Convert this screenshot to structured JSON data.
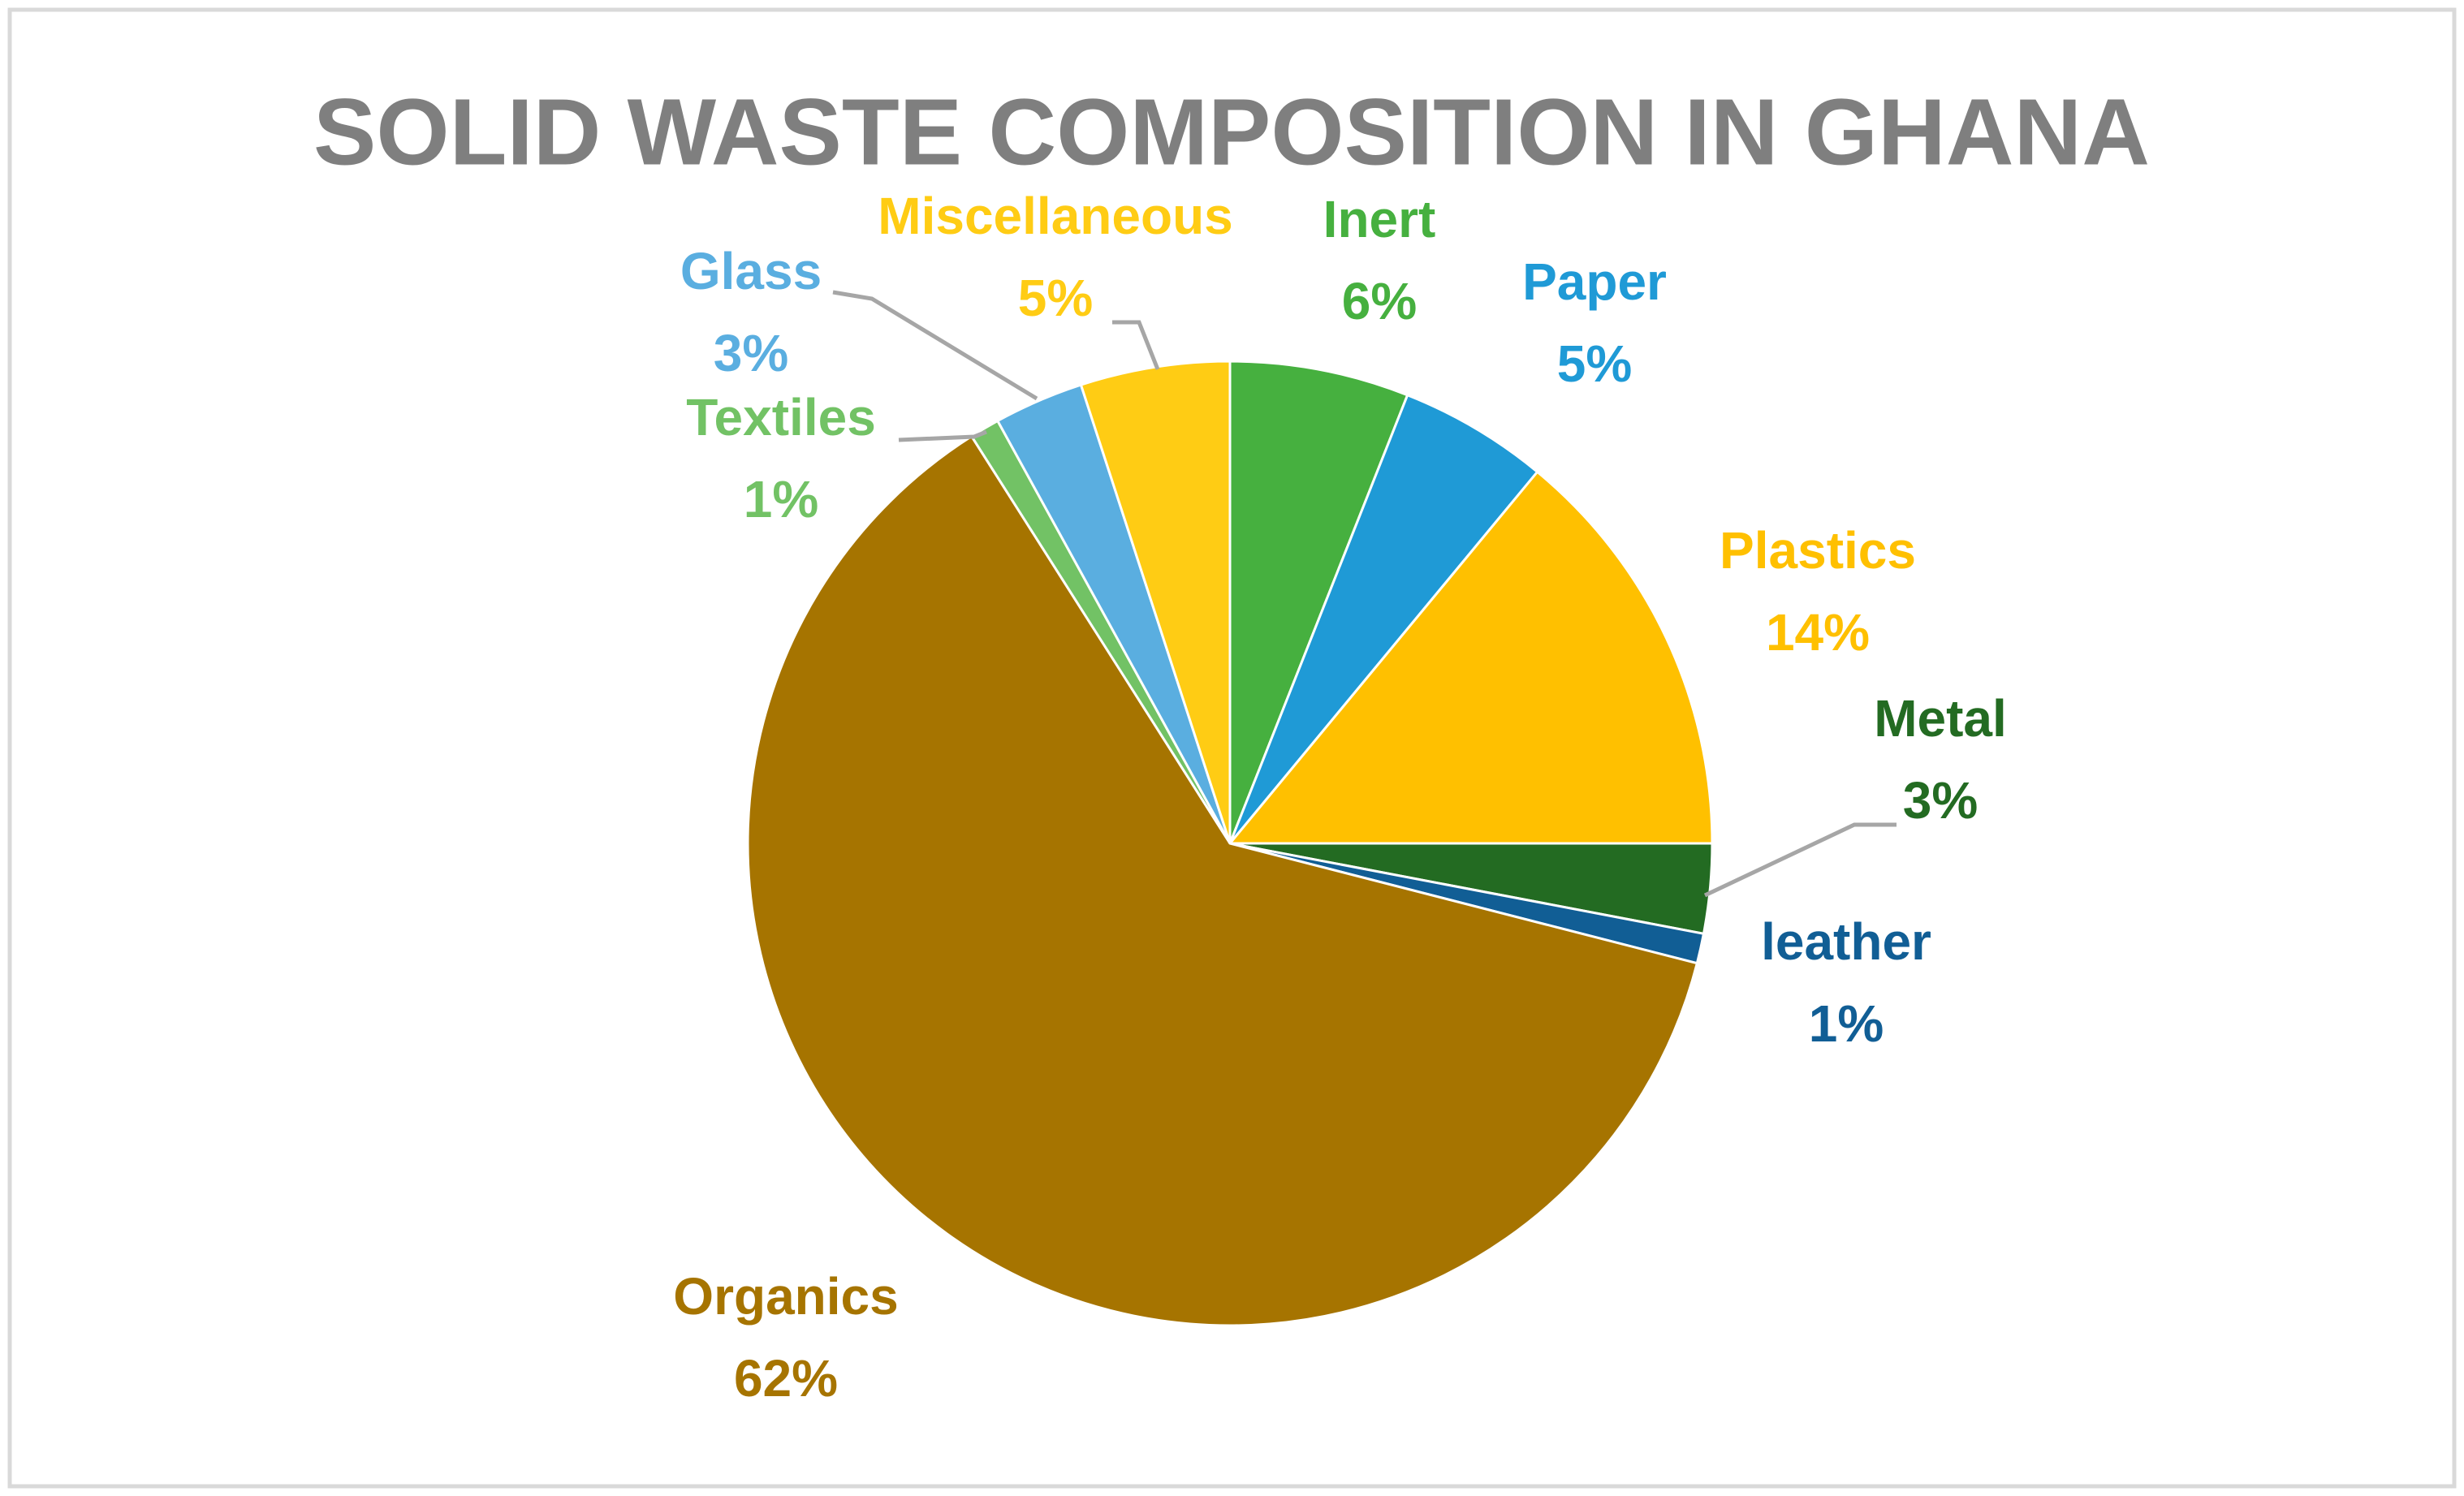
{
  "chart_data": {
    "type": "pie",
    "title": "SOLID WASTE COMPOSITION IN GHANA",
    "categories": [
      "Inert",
      "Paper",
      "Plastics",
      "Metal",
      "leather",
      "Organics",
      "Textiles",
      "Glass",
      "Miscellaneous"
    ],
    "values": [
      6,
      5,
      14,
      3,
      1,
      62,
      1,
      3,
      5
    ],
    "value_labels": [
      "6%",
      "5%",
      "14%",
      "3%",
      "1%",
      "62%",
      "1%",
      "3%",
      "5%"
    ],
    "colors": [
      "#46b03f",
      "#1f9ad6",
      "#ffc000",
      "#236b22",
      "#115e95",
      "#a67400",
      "#72c265",
      "#5aaee0",
      "#ffcc14"
    ]
  }
}
